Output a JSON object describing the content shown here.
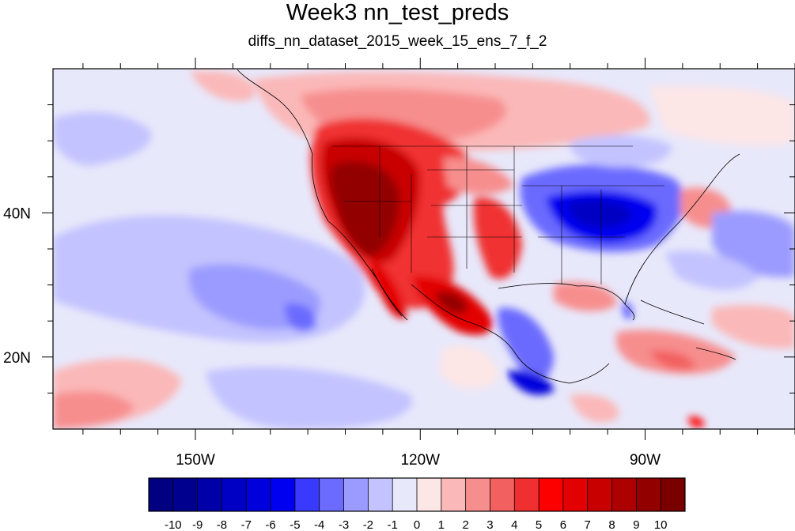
{
  "header": {
    "title": "Week3 nn_test_preds",
    "subtitle": "diffs_nn_dataset_2015_week_15_ens_7_f_2"
  },
  "map": {
    "projection": "cylindrical equidistant",
    "lon_range": [
      -169,
      -70
    ],
    "lat_range": [
      10,
      60
    ],
    "lon_ticks": [
      {
        "value": -150,
        "label": "150W"
      },
      {
        "value": -120,
        "label": "120W"
      },
      {
        "value": -90,
        "label": "90W"
      }
    ],
    "lat_ticks": [
      {
        "value": 40,
        "label": "40N"
      },
      {
        "value": 20,
        "label": "20N"
      }
    ],
    "field_description": "filled contours of prediction difference"
  },
  "colorbar": {
    "levels": [
      "-10",
      "-9",
      "-8",
      "-7",
      "-6",
      "-5",
      "-4",
      "-3",
      "-2",
      "-1",
      "0",
      "1",
      "2",
      "3",
      "4",
      "5",
      "6",
      "7",
      "8",
      "9",
      "10"
    ],
    "colors": [
      "#000080",
      "#00008f",
      "#0000a8",
      "#0000c4",
      "#0000dc",
      "#0000f0",
      "#3a3aff",
      "#6b6bff",
      "#9b9bff",
      "#c3c3ff",
      "#e8e8fb",
      "#fde6e6",
      "#fbb8b8",
      "#f78e8e",
      "#f36060",
      "#f03030",
      "#fc0000",
      "#e30000",
      "#c80000",
      "#ad0000",
      "#930000",
      "#7a0000"
    ]
  }
}
